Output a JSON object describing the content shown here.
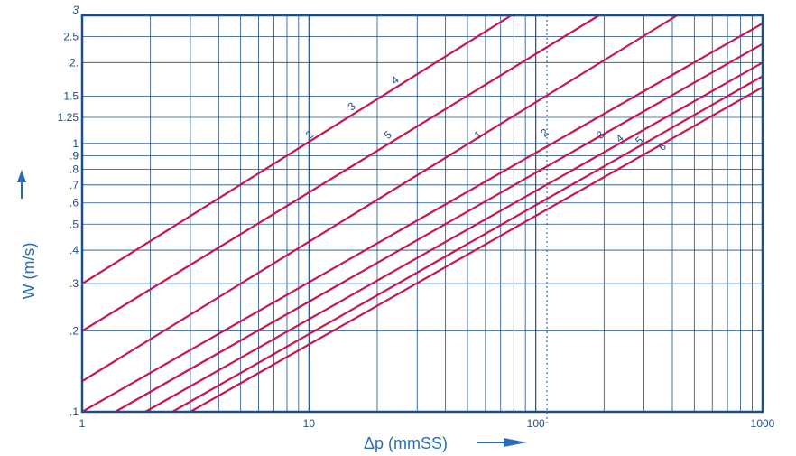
{
  "chart_data": {
    "type": "line",
    "title": "",
    "xlabel": "Δp (mmSS)",
    "ylabel": "W (m/s)",
    "xscale": "log",
    "yscale": "log",
    "xlim": [
      1,
      1000
    ],
    "ylim": [
      0.1,
      3
    ],
    "grid": true,
    "reference_line_x": 112,
    "x_tick_labels": [
      {
        "value": 1,
        "label": "1"
      },
      {
        "value": 10,
        "label": "10"
      },
      {
        "value": 100,
        "label": "100"
      },
      {
        "value": 1000,
        "label": "1000"
      }
    ],
    "y_tick_labels": [
      {
        "value": 0.1,
        "label": ".1"
      },
      {
        "value": 0.2,
        "label": ".2"
      },
      {
        "value": 0.3,
        "label": ".3"
      },
      {
        "value": 0.4,
        "label": ".4"
      },
      {
        "value": 0.5,
        "label": ".5"
      },
      {
        "value": 0.6,
        "label": ".6"
      },
      {
        "value": 0.7,
        "label": ".7"
      },
      {
        "value": 0.8,
        "label": ".8"
      },
      {
        "value": 0.9,
        "label": ".9"
      },
      {
        "value": 1,
        "label": "1"
      },
      {
        "value": 1.25,
        "label": "1.25"
      },
      {
        "value": 1.5,
        "label": "1.5"
      },
      {
        "value": 2,
        "label": "2."
      },
      {
        "value": 2.5,
        "label": "2.5"
      },
      {
        "value": 3,
        "label": "3"
      }
    ],
    "series": [
      {
        "name": "2",
        "x": [
          1,
          78
        ],
        "y": [
          0.3,
          3.0
        ]
      },
      {
        "name": "5",
        "x": [
          1,
          190
        ],
        "y": [
          0.2,
          3.0
        ]
      },
      {
        "name": "1",
        "x": [
          1,
          420
        ],
        "y": [
          0.13,
          3.0
        ]
      },
      {
        "name": "2",
        "x": [
          1,
          1000
        ],
        "y": [
          0.1,
          2.8
        ]
      },
      {
        "name": "3",
        "x": [
          1.4,
          1000
        ],
        "y": [
          0.1,
          2.35
        ]
      },
      {
        "name": "4",
        "x": [
          1.9,
          1000
        ],
        "y": [
          0.1,
          2.0
        ]
      },
      {
        "name": "5",
        "x": [
          2.5,
          1000
        ],
        "y": [
          0.1,
          1.78
        ]
      },
      {
        "name": "6",
        "x": [
          3.0,
          1000
        ],
        "y": [
          0.1,
          1.62
        ]
      }
    ],
    "curve_labels": [
      {
        "text": "2",
        "x": 10.3,
        "y": 1.05
      },
      {
        "text": "3",
        "x": 15.8,
        "y": 1.34
      },
      {
        "text": "4",
        "x": 24.5,
        "y": 1.68
      },
      {
        "text": "5",
        "x": 22.8,
        "y": 1.05
      },
      {
        "text": "1",
        "x": 57,
        "y": 1.05
      },
      {
        "text": "2",
        "x": 112,
        "y": 1.07
      },
      {
        "text": "3",
        "x": 197,
        "y": 1.05
      },
      {
        "text": "4",
        "x": 240,
        "y": 1.02
      },
      {
        "text": "5",
        "x": 292,
        "y": 1.0
      },
      {
        "text": "6",
        "x": 370,
        "y": 0.95
      }
    ],
    "colors": {
      "line": "#c8164f",
      "grid": "#1a4f8b",
      "frame": "#1a4f8b",
      "text": "#1a4f8b",
      "axis_title": "#2a6fb5"
    }
  }
}
